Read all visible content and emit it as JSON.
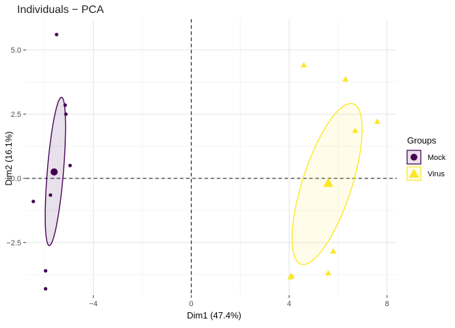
{
  "chart_data": {
    "type": "scatter",
    "title": "Individuals − PCA",
    "xlabel": "Dim1 (47.4%)",
    "ylabel": "Dim2 (16.1%)",
    "xlim": [
      -6.75,
      8.4
    ],
    "ylim": [
      -4.55,
      6.2
    ],
    "x_ticks": [
      -4,
      0,
      4,
      8
    ],
    "x_tick_labels": [
      "−4",
      "0",
      "4",
      "8"
    ],
    "y_ticks": [
      -2.5,
      0,
      2.5,
      5
    ],
    "y_tick_labels": [
      "−2.5",
      "0.0",
      "2.5",
      "5.0"
    ],
    "grid": true,
    "reference_lines": {
      "x": 0,
      "y": 0,
      "style": "dashed"
    },
    "legend": {
      "title": "Groups",
      "position": "right"
    },
    "series": [
      {
        "name": "Mock",
        "color": "#440154",
        "marker": "circle",
        "points": [
          {
            "x": -5.5,
            "y": 5.6
          },
          {
            "x": -5.15,
            "y": 2.85
          },
          {
            "x": -5.12,
            "y": 2.5
          },
          {
            "x": -4.95,
            "y": 0.5
          },
          {
            "x": -5.75,
            "y": -0.65
          },
          {
            "x": -6.45,
            "y": -0.9
          },
          {
            "x": -5.95,
            "y": -3.6
          },
          {
            "x": -5.95,
            "y": -4.3
          }
        ],
        "centroid": {
          "x": -5.6,
          "y": 0.25
        },
        "ellipse": {
          "cx": -5.55,
          "cy": 0.27,
          "rx": 2.9,
          "ry": 0.33,
          "angle_deg": 85
        }
      },
      {
        "name": "Virus",
        "color": "#FDE725",
        "marker": "triangle",
        "points": [
          {
            "x": 4.6,
            "y": 4.4
          },
          {
            "x": 6.3,
            "y": 3.85
          },
          {
            "x": 7.6,
            "y": 2.2
          },
          {
            "x": 6.7,
            "y": 1.85
          },
          {
            "x": 5.8,
            "y": -2.85
          },
          {
            "x": 5.6,
            "y": -3.7
          },
          {
            "x": 4.05,
            "y": -3.85
          },
          {
            "x": 4.1,
            "y": -3.8
          }
        ],
        "centroid": {
          "x": 5.6,
          "y": -0.2
        },
        "ellipse": {
          "cx": 5.55,
          "cy": -0.22,
          "rx": 3.3,
          "ry": 1.0,
          "angle_deg": 71
        }
      }
    ]
  }
}
